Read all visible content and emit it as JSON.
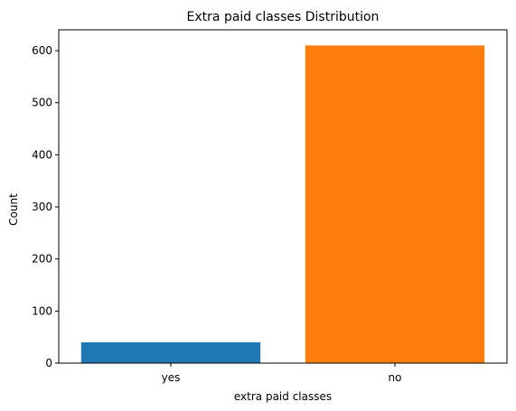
{
  "chart_data": {
    "type": "bar",
    "title": "Extra paid classes Distribution",
    "xlabel": "extra paid classes",
    "ylabel": "Count",
    "categories": [
      "yes",
      "no"
    ],
    "values": [
      40,
      610
    ],
    "colors": [
      "#1f77b4",
      "#ff7f0e"
    ],
    "ylim": [
      0,
      640
    ],
    "yticks": [
      0,
      100,
      200,
      300,
      400,
      500,
      600
    ],
    "grid": false
  }
}
